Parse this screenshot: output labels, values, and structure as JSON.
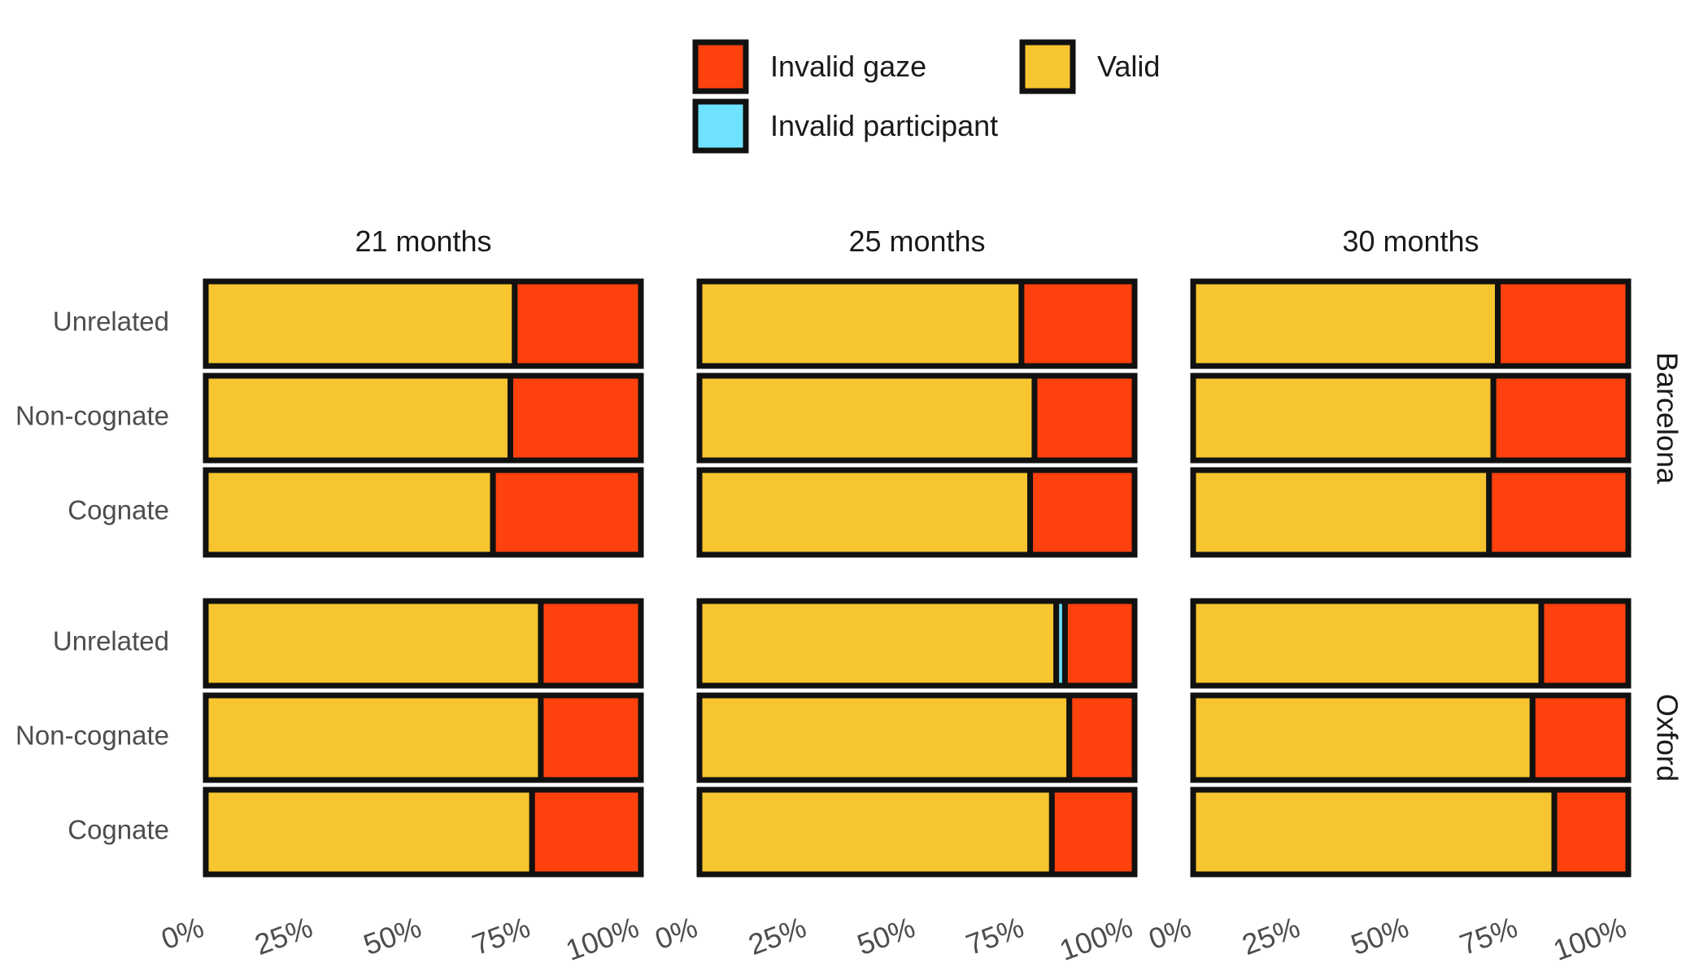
{
  "chart_data": {
    "type": "bar",
    "orientation": "horizontal",
    "stacked": "percent",
    "title": "",
    "xlabel": "",
    "ylabel": "",
    "xlim": [
      0,
      100
    ],
    "x_ticks": [
      "0%",
      "25%",
      "50%",
      "75%",
      "100%"
    ],
    "legend": {
      "position": "top",
      "entries": [
        {
          "key": "invalid_gaze",
          "label": "Invalid gaze",
          "color": "#FF410D"
        },
        {
          "key": "invalid_participant",
          "label": "Invalid participant",
          "color": "#6EE2FF"
        },
        {
          "key": "valid",
          "label": "Valid",
          "color": "#F7C530"
        }
      ]
    },
    "stack_order": [
      "valid",
      "invalid_participant",
      "invalid_gaze"
    ],
    "colors": {
      "valid": "#F7C530",
      "invalid_participant": "#6EE2FF",
      "invalid_gaze": "#FF410D",
      "outline": "#111111"
    },
    "columns": [
      "21 months",
      "25 months",
      "30 months"
    ],
    "rows": [
      "Barcelona",
      "Oxford"
    ],
    "categories": [
      "Unrelated",
      "Non-cognate",
      "Cognate"
    ],
    "panels": [
      {
        "column": "21 months",
        "row": "Barcelona",
        "bars": [
          {
            "category": "Unrelated",
            "valid": 71,
            "invalid_participant": 0,
            "invalid_gaze": 29
          },
          {
            "category": "Non-cognate",
            "valid": 70,
            "invalid_participant": 0,
            "invalid_gaze": 30
          },
          {
            "category": "Cognate",
            "valid": 66,
            "invalid_participant": 0,
            "invalid_gaze": 34
          }
        ]
      },
      {
        "column": "25 months",
        "row": "Barcelona",
        "bars": [
          {
            "category": "Unrelated",
            "valid": 74,
            "invalid_participant": 0,
            "invalid_gaze": 26
          },
          {
            "category": "Non-cognate",
            "valid": 77,
            "invalid_participant": 0,
            "invalid_gaze": 23
          },
          {
            "category": "Cognate",
            "valid": 76,
            "invalid_participant": 0,
            "invalid_gaze": 24
          }
        ]
      },
      {
        "column": "30 months",
        "row": "Barcelona",
        "bars": [
          {
            "category": "Unrelated",
            "valid": 70,
            "invalid_participant": 0,
            "invalid_gaze": 30
          },
          {
            "category": "Non-cognate",
            "valid": 69,
            "invalid_participant": 0,
            "invalid_gaze": 31
          },
          {
            "category": "Cognate",
            "valid": 68,
            "invalid_participant": 0,
            "invalid_gaze": 32
          }
        ]
      },
      {
        "column": "21 months",
        "row": "Oxford",
        "bars": [
          {
            "category": "Unrelated",
            "valid": 77,
            "invalid_participant": 0,
            "invalid_gaze": 23
          },
          {
            "category": "Non-cognate",
            "valid": 77,
            "invalid_participant": 0,
            "invalid_gaze": 23
          },
          {
            "category": "Cognate",
            "valid": 75,
            "invalid_participant": 0,
            "invalid_gaze": 25
          }
        ]
      },
      {
        "column": "25 months",
        "row": "Oxford",
        "bars": [
          {
            "category": "Unrelated",
            "valid": 82,
            "invalid_participant": 2,
            "invalid_gaze": 16
          },
          {
            "category": "Non-cognate",
            "valid": 85,
            "invalid_participant": 0,
            "invalid_gaze": 15
          },
          {
            "category": "Cognate",
            "valid": 81,
            "invalid_participant": 0,
            "invalid_gaze": 19
          }
        ]
      },
      {
        "column": "30 months",
        "row": "Oxford",
        "bars": [
          {
            "category": "Unrelated",
            "valid": 80,
            "invalid_participant": 0,
            "invalid_gaze": 20
          },
          {
            "category": "Non-cognate",
            "valid": 78,
            "invalid_participant": 0,
            "invalid_gaze": 22
          },
          {
            "category": "Cognate",
            "valid": 83,
            "invalid_participant": 0,
            "invalid_gaze": 17
          }
        ]
      }
    ]
  }
}
